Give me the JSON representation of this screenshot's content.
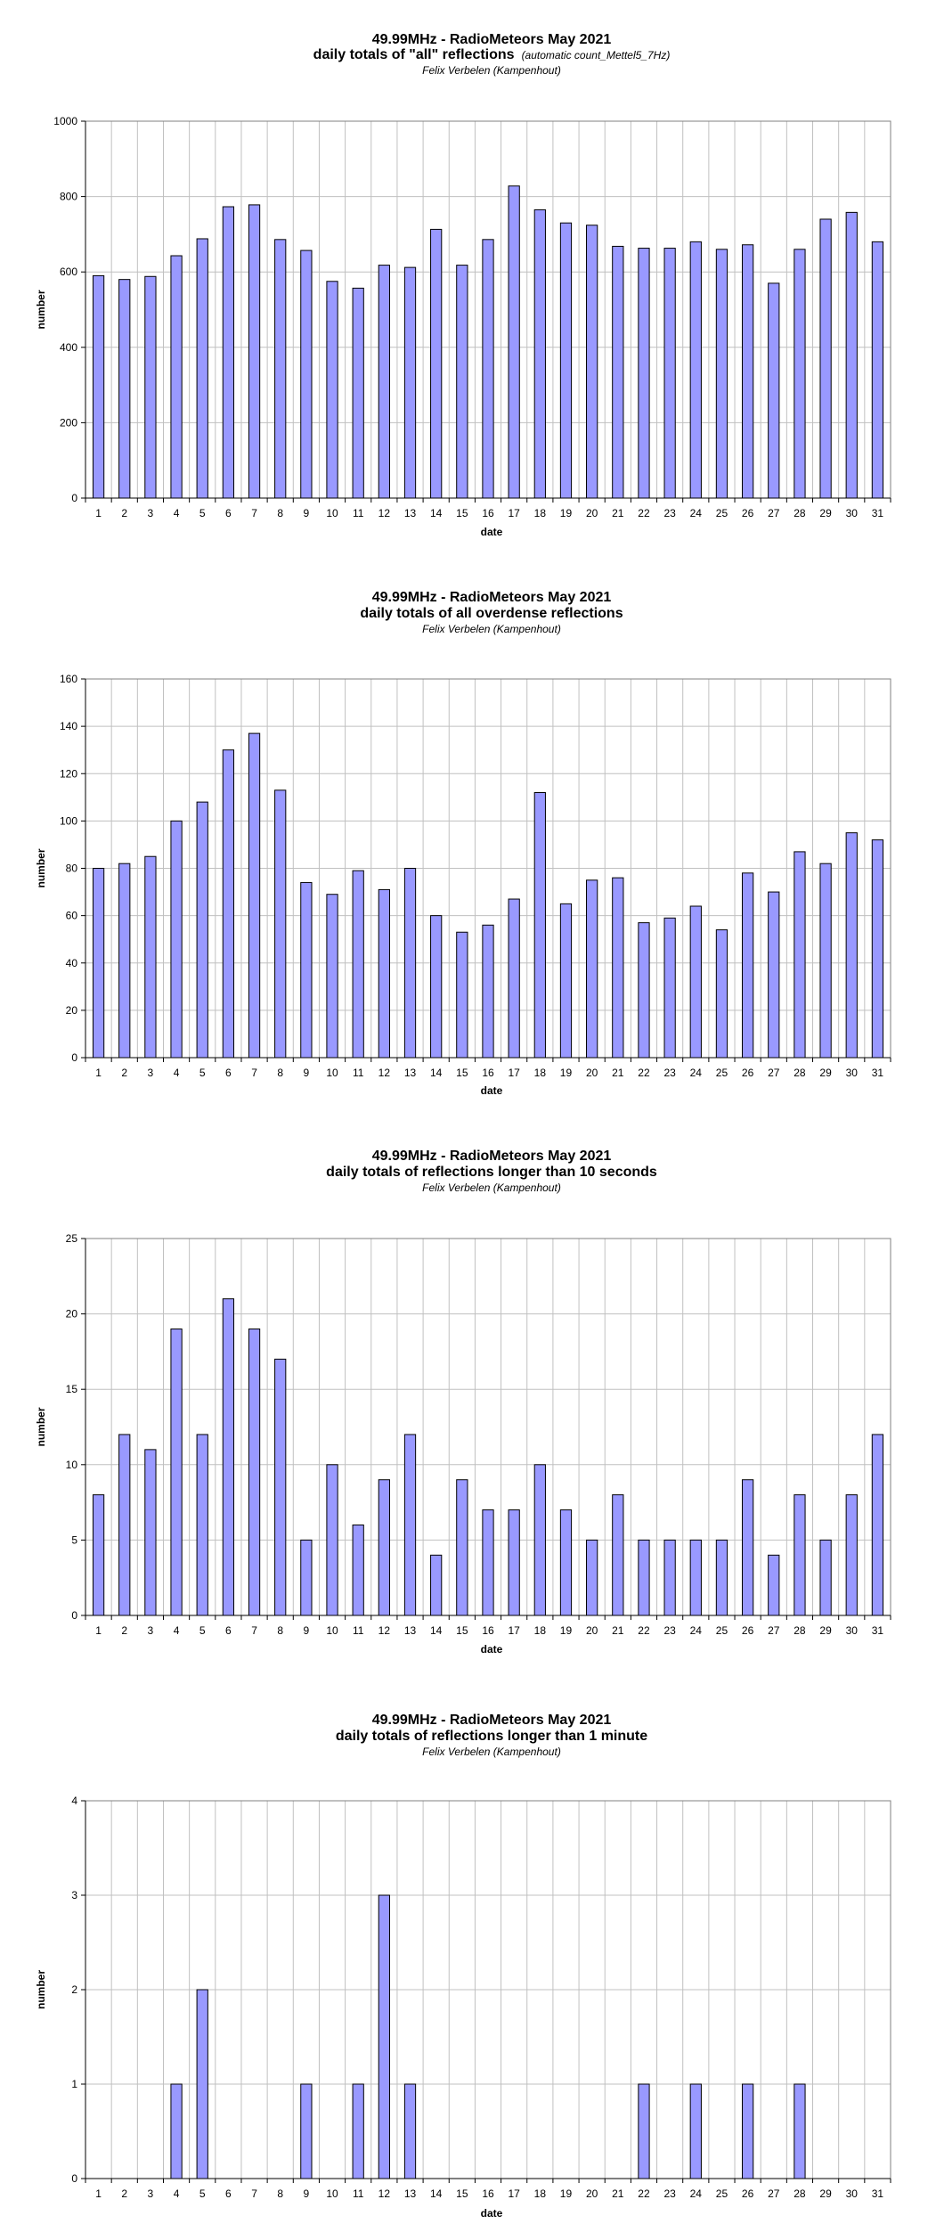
{
  "chart_data": [
    {
      "type": "bar",
      "title": "49.99MHz - RadioMeteors May 2021",
      "subtitle": "daily totals of \"all\" reflections",
      "subtitle_note": "(automatic count_Mettel5_7Hz)",
      "author": "Felix Verbelen (Kampenhout)",
      "xlabel": "date",
      "ylabel": "number",
      "ylim": [
        0,
        1000
      ],
      "yticks": [
        0,
        200,
        400,
        600,
        800,
        1000
      ],
      "grid": true,
      "bar_color": "#9999ff",
      "categories": [
        "1",
        "2",
        "3",
        "4",
        "5",
        "6",
        "7",
        "8",
        "9",
        "10",
        "11",
        "12",
        "13",
        "14",
        "15",
        "16",
        "17",
        "18",
        "19",
        "20",
        "21",
        "22",
        "23",
        "24",
        "25",
        "26",
        "27",
        "28",
        "29",
        "30",
        "31"
      ],
      "values": [
        590,
        580,
        588,
        643,
        688,
        773,
        778,
        686,
        657,
        575,
        557,
        618,
        612,
        713,
        618,
        686,
        828,
        765,
        730,
        724,
        668,
        663,
        663,
        680,
        660,
        672,
        570,
        660,
        740,
        758,
        680
      ]
    },
    {
      "type": "bar",
      "title": "49.99MHz - RadioMeteors May 2021",
      "subtitle": "daily totals of all overdense reflections",
      "author": "Felix Verbelen (Kampenhout)",
      "xlabel": "date",
      "ylabel": "number",
      "ylim": [
        0,
        160
      ],
      "yticks": [
        0,
        20,
        40,
        60,
        80,
        100,
        120,
        140,
        160
      ],
      "grid": true,
      "bar_color": "#9999ff",
      "categories": [
        "1",
        "2",
        "3",
        "4",
        "5",
        "6",
        "7",
        "8",
        "9",
        "10",
        "11",
        "12",
        "13",
        "14",
        "15",
        "16",
        "17",
        "18",
        "19",
        "20",
        "21",
        "22",
        "23",
        "24",
        "25",
        "26",
        "27",
        "28",
        "29",
        "30",
        "31"
      ],
      "values": [
        80,
        82,
        85,
        100,
        108,
        130,
        137,
        113,
        74,
        69,
        79,
        71,
        80,
        60,
        53,
        56,
        67,
        112,
        65,
        75,
        76,
        57,
        59,
        64,
        54,
        78,
        70,
        87,
        82,
        95,
        92
      ]
    },
    {
      "type": "bar",
      "title": "49.99MHz - RadioMeteors May 2021",
      "subtitle": "daily totals of reflections longer than 10 seconds",
      "author": "Felix Verbelen (Kampenhout)",
      "xlabel": "date",
      "ylabel": "number",
      "ylim": [
        0,
        25
      ],
      "yticks": [
        0,
        5,
        10,
        15,
        20,
        25
      ],
      "grid": true,
      "bar_color": "#9999ff",
      "categories": [
        "1",
        "2",
        "3",
        "4",
        "5",
        "6",
        "7",
        "8",
        "9",
        "10",
        "11",
        "12",
        "13",
        "14",
        "15",
        "16",
        "17",
        "18",
        "19",
        "20",
        "21",
        "22",
        "23",
        "24",
        "25",
        "26",
        "27",
        "28",
        "29",
        "30",
        "31"
      ],
      "values": [
        8,
        12,
        11,
        19,
        12,
        21,
        19,
        17,
        5,
        10,
        6,
        9,
        12,
        4,
        9,
        7,
        7,
        10,
        7,
        5,
        8,
        5,
        5,
        5,
        5,
        9,
        4,
        8,
        5,
        8,
        12
      ]
    },
    {
      "type": "bar",
      "title": "49.99MHz - RadioMeteors May 2021",
      "subtitle": "daily totals of reflections longer than 1 minute",
      "author": "Felix Verbelen (Kampenhout)",
      "xlabel": "date",
      "ylabel": "number",
      "ylim": [
        0,
        4
      ],
      "yticks": [
        0,
        1,
        2,
        3,
        4
      ],
      "grid": true,
      "bar_color": "#9999ff",
      "categories": [
        "1",
        "2",
        "3",
        "4",
        "5",
        "6",
        "7",
        "8",
        "9",
        "10",
        "11",
        "12",
        "13",
        "14",
        "15",
        "16",
        "17",
        "18",
        "19",
        "20",
        "21",
        "22",
        "23",
        "24",
        "25",
        "26",
        "27",
        "28",
        "29",
        "30",
        "31"
      ],
      "values": [
        0,
        0,
        0,
        1,
        2,
        0,
        0,
        0,
        1,
        0,
        1,
        3,
        1,
        0,
        0,
        0,
        0,
        0,
        0,
        0,
        0,
        1,
        0,
        1,
        0,
        1,
        0,
        1,
        0,
        0,
        0
      ]
    }
  ]
}
